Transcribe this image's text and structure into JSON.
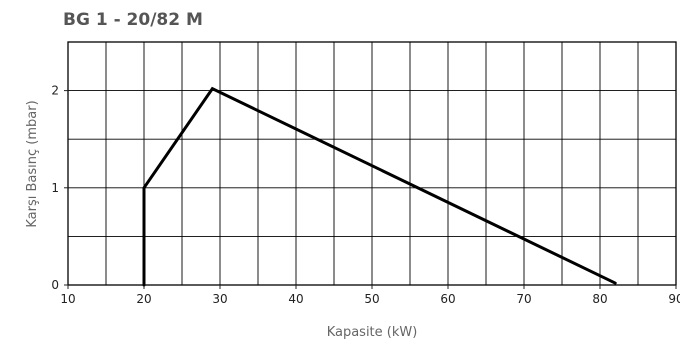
{
  "chart_data": {
    "type": "line",
    "title": "BG 1 - 20/82 M",
    "xlabel": "Kapasite (kW)",
    "ylabel": "Karşı Basınç (mbar)",
    "xlim": [
      10,
      90
    ],
    "ylim": [
      0,
      2.5
    ],
    "x_ticks": [
      "10",
      "20",
      "30",
      "40",
      "50",
      "60",
      "70",
      "80",
      "90"
    ],
    "y_ticks": [
      "0",
      "1",
      "2"
    ],
    "grid": true,
    "series": [
      {
        "x": [
          20,
          20,
          29,
          82
        ],
        "y": [
          0,
          1.0,
          2.02,
          0.02
        ]
      }
    ],
    "colors": {
      "line": "#000000",
      "grid": "#000000",
      "title": "#555555",
      "labels": "#666666",
      "ticks": "#222222"
    }
  }
}
